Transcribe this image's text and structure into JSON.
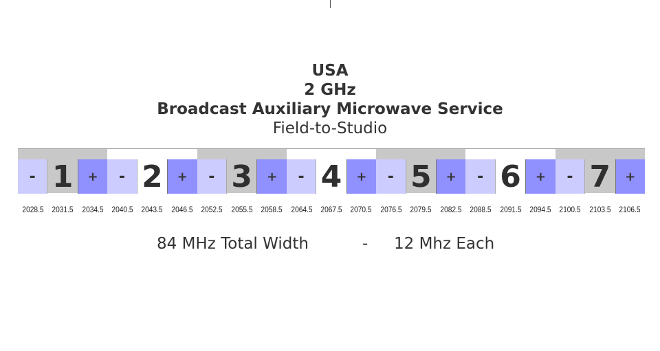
{
  "title": {
    "line1": "USA",
    "line2": "2 GHz",
    "line3": "Broadcast Auxiliary Microwave Service",
    "line4": "Field-to-Studio"
  },
  "channels": [
    {
      "number": "1",
      "minus": "-",
      "plus": "+",
      "freqs": [
        "2028.5",
        "2031.5",
        "2034.5"
      ]
    },
    {
      "number": "2",
      "minus": "-",
      "plus": "+",
      "freqs": [
        "2040.5",
        "2043.5",
        "2046.5"
      ]
    },
    {
      "number": "3",
      "minus": "-",
      "plus": "+",
      "freqs": [
        "2052.5",
        "2055.5",
        "2058.5"
      ]
    },
    {
      "number": "4",
      "minus": "-",
      "plus": "+",
      "freqs": [
        "2064.5",
        "2067.5",
        "2070.5"
      ]
    },
    {
      "number": "5",
      "minus": "-",
      "plus": "+",
      "freqs": [
        "2076.5",
        "2079.5",
        "2082.5"
      ]
    },
    {
      "number": "6",
      "minus": "-",
      "plus": "+",
      "freqs": [
        "2088.5",
        "2091.5",
        "2094.5"
      ]
    },
    {
      "number": "7",
      "minus": "-",
      "plus": "+",
      "freqs": [
        "2100.5",
        "2103.5",
        "2106.5"
      ]
    }
  ],
  "colors": {
    "odd_channel": "#c8c8c8",
    "even_channel": "#ffffff",
    "minus": "#ccccff",
    "plus": "#9090ff"
  },
  "footer": {
    "total": "84 MHz Total Width",
    "sep": "-",
    "each": "12 Mhz Each"
  }
}
